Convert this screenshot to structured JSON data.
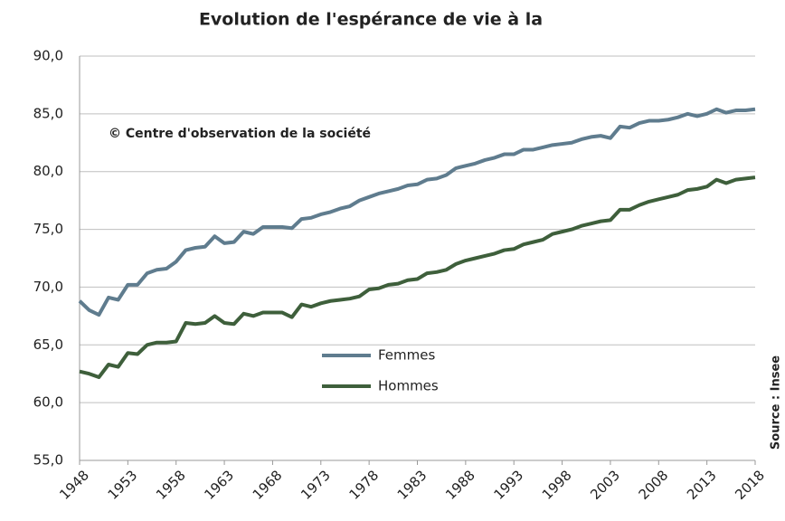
{
  "chart_data": {
    "type": "line",
    "title": "Evolution  de l'espérance de vie à la",
    "annotation": "© Centre d'observation de la société",
    "source": "Source : Insee",
    "x": [
      1948,
      1949,
      1950,
      1951,
      1952,
      1953,
      1954,
      1955,
      1956,
      1957,
      1958,
      1959,
      1960,
      1961,
      1962,
      1963,
      1964,
      1965,
      1966,
      1967,
      1968,
      1969,
      1970,
      1971,
      1972,
      1973,
      1974,
      1975,
      1976,
      1977,
      1978,
      1979,
      1980,
      1981,
      1982,
      1983,
      1984,
      1985,
      1986,
      1987,
      1988,
      1989,
      1990,
      1991,
      1992,
      1993,
      1994,
      1995,
      1996,
      1997,
      1998,
      1999,
      2000,
      2001,
      2002,
      2003,
      2004,
      2005,
      2006,
      2007,
      2008,
      2009,
      2010,
      2011,
      2012,
      2013,
      2014,
      2015,
      2016,
      2017,
      2018
    ],
    "series": [
      {
        "name": "Femmes",
        "color": "#5f7c8e",
        "values": [
          68.8,
          68.0,
          67.6,
          69.1,
          68.9,
          70.2,
          70.2,
          71.2,
          71.5,
          71.6,
          72.2,
          73.2,
          73.4,
          73.5,
          74.4,
          73.8,
          73.9,
          74.8,
          74.6,
          75.2,
          75.2,
          75.2,
          75.1,
          75.9,
          76.0,
          76.3,
          76.5,
          76.8,
          77.0,
          77.5,
          77.8,
          78.1,
          78.3,
          78.5,
          78.8,
          78.9,
          79.3,
          79.4,
          79.7,
          80.3,
          80.5,
          80.7,
          81.0,
          81.2,
          81.5,
          81.5,
          81.9,
          81.9,
          82.1,
          82.3,
          82.4,
          82.5,
          82.8,
          83.0,
          83.1,
          82.9,
          83.9,
          83.8,
          84.2,
          84.4,
          84.4,
          84.5,
          84.7,
          85.0,
          84.8,
          85.0,
          85.4,
          85.1,
          85.3,
          85.3,
          85.4
        ]
      },
      {
        "name": "Hommes",
        "color": "#3e5f3b",
        "values": [
          62.7,
          62.5,
          62.2,
          63.3,
          63.1,
          64.3,
          64.2,
          65.0,
          65.2,
          65.2,
          65.3,
          66.9,
          66.8,
          66.9,
          67.5,
          66.9,
          66.8,
          67.7,
          67.5,
          67.8,
          67.8,
          67.8,
          67.4,
          68.5,
          68.3,
          68.6,
          68.8,
          68.9,
          69.0,
          69.2,
          69.8,
          69.9,
          70.2,
          70.3,
          70.6,
          70.7,
          71.2,
          71.3,
          71.5,
          72.0,
          72.3,
          72.5,
          72.7,
          72.9,
          73.2,
          73.3,
          73.7,
          73.9,
          74.1,
          74.6,
          74.8,
          75.0,
          75.3,
          75.5,
          75.7,
          75.8,
          76.7,
          76.7,
          77.1,
          77.4,
          77.6,
          77.8,
          78.0,
          78.4,
          78.5,
          78.7,
          79.3,
          79.0,
          79.3,
          79.4,
          79.5
        ]
      }
    ],
    "xlim": [
      1948,
      2018
    ],
    "xticks": [
      1948,
      1953,
      1958,
      1963,
      1968,
      1973,
      1978,
      1983,
      1988,
      1993,
      1998,
      2003,
      2008,
      2013,
      2018
    ],
    "ylim": [
      55,
      90
    ],
    "yticks": [
      {
        "value": 55,
        "label": "55,0"
      },
      {
        "value": 60,
        "label": "60,0"
      },
      {
        "value": 65,
        "label": "65,0"
      },
      {
        "value": 70,
        "label": "70,0"
      },
      {
        "value": 75,
        "label": "75,0"
      },
      {
        "value": 80,
        "label": "80,0"
      },
      {
        "value": 85,
        "label": "85,0"
      },
      {
        "value": 90,
        "label": "90,0"
      }
    ],
    "grid": true
  }
}
